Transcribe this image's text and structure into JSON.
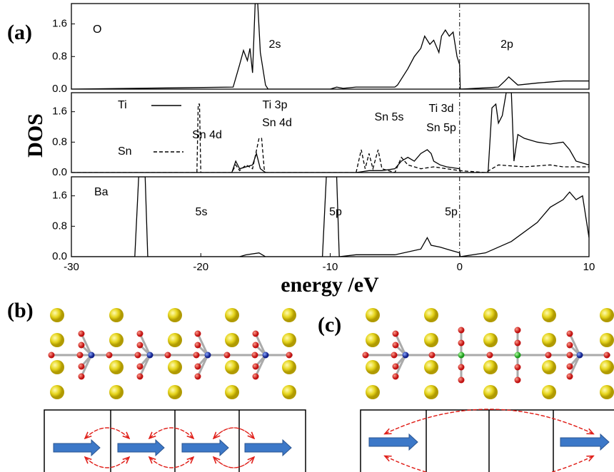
{
  "figure": {
    "ylabel": "DOS",
    "xlabel": "energy /eV",
    "panel_labels": [
      "(a)",
      "(b)",
      "(c)"
    ]
  },
  "chart_data": [
    {
      "type": "line",
      "xlim": [
        -30,
        10
      ],
      "ylim": [
        0,
        2.1
      ],
      "yticks": [
        {
          "value": 0,
          "label": "0.0"
        },
        0.8,
        1.6
      ],
      "vline": 0,
      "annotations": [
        "2s",
        "2p"
      ],
      "series": [
        {
          "name": "O",
          "color": "#000000",
          "dash": "solid",
          "x": [
            -30,
            -17.5,
            -17,
            -16.7,
            -16.4,
            -16.2,
            -16,
            -15.8,
            -15.6,
            -15.4,
            -15.2,
            -15,
            -14.8,
            -10,
            -9.5,
            -9,
            -8,
            -7,
            -6,
            -5,
            -4.8,
            -4,
            -3.5,
            -3,
            -2.7,
            -2.3,
            -2,
            -1.6,
            -1.4,
            -1.1,
            -0.8,
            -0.5,
            -0.2,
            0,
            0.05,
            3,
            3.5,
            3.8,
            4.5,
            6,
            8,
            10
          ],
          "values": [
            0,
            0.05,
            0.6,
            0.95,
            0.7,
            1.0,
            0.4,
            2.1,
            2.1,
            0.9,
            0.5,
            0.1,
            0,
            0,
            0.05,
            0.02,
            0.05,
            0.05,
            0.05,
            0.05,
            0.1,
            0.5,
            0.8,
            1.0,
            1.3,
            1.1,
            1.2,
            0.9,
            1.3,
            1.45,
            1.3,
            1.4,
            0.8,
            0.6,
            0,
            0.05,
            0.2,
            0.3,
            0.1,
            0.15,
            0.2,
            0.2
          ]
        }
      ]
    },
    {
      "type": "line",
      "xlim": [
        -30,
        10
      ],
      "ylim": [
        0,
        2.1
      ],
      "yticks": [
        {
          "value": 0,
          "label": "0.0"
        },
        0.8,
        1.6
      ],
      "vline": 0,
      "annotations": [
        "Sn 4d",
        "Ti 3p",
        "Sn 4d",
        "Sn 5s",
        "Ti 3d",
        "Sn 5p"
      ],
      "series": [
        {
          "name": "Ti",
          "color": "#000000",
          "dash": "solid",
          "x": [
            -30,
            -17.6,
            -17.3,
            -17,
            -16,
            -15.7,
            -15.4,
            -15,
            -8,
            -7,
            -6,
            -5,
            -4.5,
            -4,
            -3.5,
            -3,
            -2.5,
            -2.2,
            -2,
            -1.5,
            -1,
            0,
            0.05,
            2.2,
            2.5,
            2.8,
            3,
            3.3,
            3.6,
            4,
            4.2,
            4.5,
            5,
            6,
            7,
            8,
            8.5,
            9,
            10
          ],
          "values": [
            0,
            0,
            0.3,
            0.1,
            0.2,
            0.5,
            0.1,
            0,
            0,
            0.05,
            0.05,
            0.1,
            0.3,
            0.4,
            0.3,
            0.5,
            0.6,
            0.5,
            0.3,
            0.2,
            0.15,
            0.1,
            0,
            0,
            1.7,
            1.8,
            1.3,
            1.5,
            2.1,
            2.1,
            0.3,
            1.0,
            0.9,
            0.8,
            0.75,
            0.8,
            0.6,
            0.3,
            0.2
          ]
        },
        {
          "name": "Sn",
          "color": "#000000",
          "dash": "dashed",
          "x": [
            -30,
            -20.3,
            -20.2,
            -20.1,
            -20,
            -17.6,
            -17.3,
            -17,
            -16.5,
            -16,
            -15.5,
            -15.3,
            -15.1,
            -15,
            -8,
            -7.6,
            -7.3,
            -7,
            -6.7,
            -6.3,
            -6,
            -5,
            -4.5,
            -4,
            -3,
            -2,
            -1,
            0,
            2,
            2.5,
            3,
            5,
            7,
            8,
            10
          ],
          "values": [
            0,
            0,
            1.8,
            1.8,
            0,
            0,
            0.2,
            0.05,
            0.2,
            0.1,
            0.9,
            0.9,
            0.1,
            0,
            0,
            0.6,
            0.1,
            0.5,
            0.1,
            0.6,
            0.1,
            0,
            0.4,
            0.2,
            0.1,
            0.15,
            0.1,
            0.05,
            0,
            0.1,
            0.2,
            0.15,
            0.2,
            0.15,
            0.15
          ]
        }
      ]
    },
    {
      "type": "line",
      "xlim": [
        -30,
        10
      ],
      "ylim": [
        0,
        2.1
      ],
      "yticks": [
        {
          "value": 0,
          "label": "0.0"
        },
        0.8,
        1.6
      ],
      "xticks": [
        -30,
        -20,
        -10,
        0,
        10
      ],
      "vline": 0,
      "annotations": [
        "5s",
        "5p",
        "5p"
      ],
      "series": [
        {
          "name": "Ba",
          "color": "#000000",
          "dash": "solid",
          "x": [
            -30,
            -25.1,
            -24.8,
            -24.3,
            -24.1,
            -17,
            -16.5,
            -15.5,
            -15,
            -10.6,
            -10.3,
            -9.5,
            -9.3,
            -8,
            -5,
            -3,
            -2.5,
            -2.2,
            -1.5,
            -1,
            0,
            0.05,
            2,
            4,
            6,
            7,
            8,
            8.5,
            9,
            9.5,
            10
          ],
          "values": [
            0,
            0,
            2.1,
            2.1,
            0,
            0,
            0.05,
            0.1,
            0,
            0,
            2.1,
            2.1,
            0,
            0.05,
            0.05,
            0.2,
            0.5,
            0.3,
            0.25,
            0.2,
            0.1,
            0,
            0.1,
            0.4,
            0.9,
            1.3,
            1.5,
            1.7,
            1.5,
            1.6,
            0.5
          ]
        }
      ]
    }
  ]
}
